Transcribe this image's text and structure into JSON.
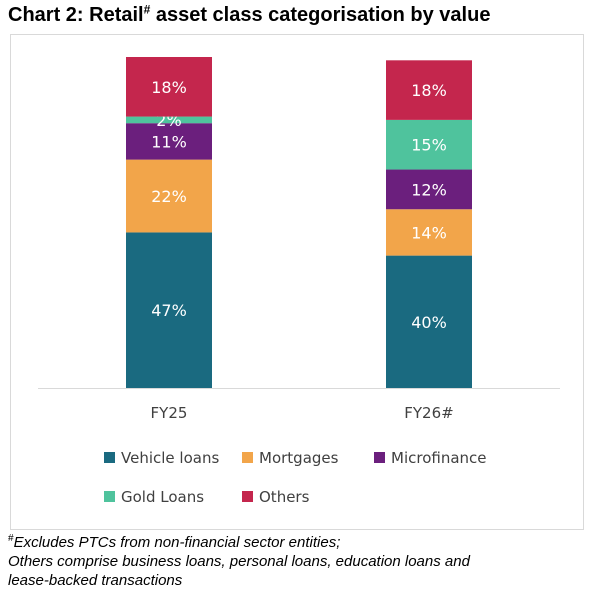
{
  "title": {
    "prefix": "Chart 2: Retail",
    "superscript": "#",
    "suffix": " asset class categorisation by value"
  },
  "chart_data": {
    "type": "bar",
    "stacked": true,
    "categories": [
      "FY25",
      "FY26#"
    ],
    "series": [
      {
        "name": "Vehicle loans",
        "color": "#1a6a80",
        "values": [
          47,
          40
        ]
      },
      {
        "name": "Mortgages",
        "color": "#f2a54a",
        "values": [
          22,
          14
        ]
      },
      {
        "name": "Microfinance",
        "color": "#6b1f7d",
        "values": [
          11,
          12
        ]
      },
      {
        "name": "Gold Loans",
        "color": "#4fc39d",
        "values": [
          2,
          15
        ]
      },
      {
        "name": "Others",
        "color": "#c4264d",
        "values": [
          18,
          18
        ]
      }
    ],
    "value_suffix": "%",
    "ylim": [
      0,
      100
    ],
    "grid": false,
    "legend_position": "bottom"
  },
  "footnote": {
    "marker": "#",
    "line1": "Excludes PTCs from non-financial sector entities;",
    "line2": "Others comprise business loans, personal loans, education loans and",
    "line3": "lease-backed transactions"
  }
}
